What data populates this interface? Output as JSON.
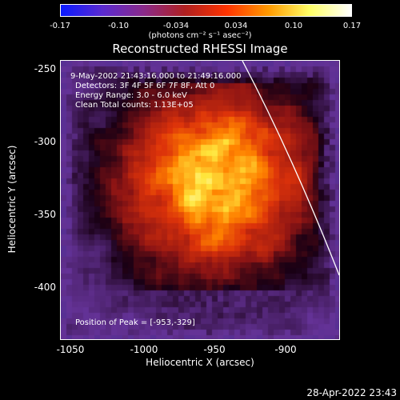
{
  "colorbar": {
    "ticks": [
      "-0.17",
      "-0.10",
      "-0.034",
      "0.034",
      "0.10",
      "0.17"
    ],
    "units": "(photons cm⁻² s⁻¹ asec⁻²)",
    "colors": [
      "#0a1aff",
      "#5a2ad0",
      "#8a2a8a",
      "#b02020",
      "#ff3300",
      "#ff9900",
      "#ffff66",
      "#ffffff"
    ]
  },
  "plot": {
    "title": "Reconstructed RHESSI Image",
    "annotations": {
      "time_range": "9-May-2002 21:43:16.000 to 21:49:16.000",
      "detectors": "Detectors: 3F 4F 5F 6F 7F 8F, Att 0",
      "energy_range": "Energy Range: 3.0 - 6.0 keV",
      "clean_counts": "Clean     Total counts: 1.13E+05",
      "peak_position": "Position of Peak = [-953,-329]"
    },
    "y_ticks": [
      "-250",
      "-300",
      "-350",
      "-400"
    ],
    "x_ticks": [
      "-1050",
      "-1000",
      "-950",
      "-900"
    ],
    "xlabel": "Heliocentric X (arcsec)",
    "ylabel": "Heliocentric Y (arcsec)",
    "xlim": [
      -1060,
      -870
    ],
    "ylim": [
      -435,
      -245
    ]
  },
  "footer": {
    "timestamp": "28-Apr-2022 23:43"
  }
}
